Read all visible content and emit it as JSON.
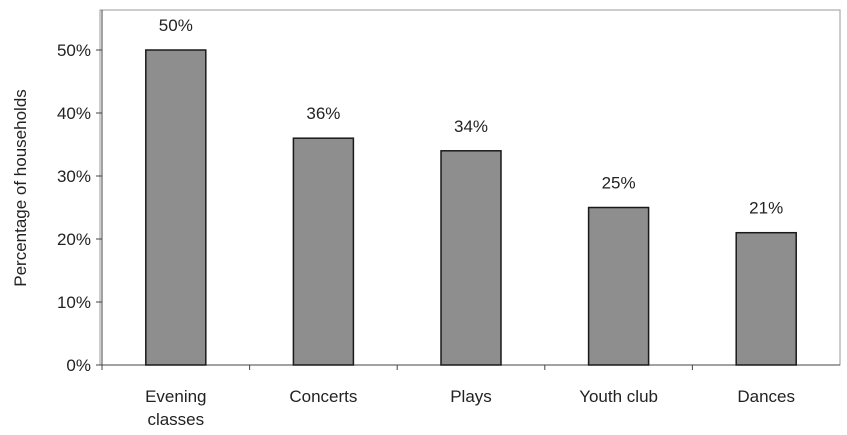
{
  "chart_data": {
    "type": "bar",
    "ylabel": "Percentage of households",
    "xlabel": "",
    "title": "",
    "categories": [
      [
        "Evening",
        "classes"
      ],
      [
        "Concerts"
      ],
      [
        "Plays"
      ],
      [
        "Youth club"
      ],
      [
        "Dances"
      ]
    ],
    "values": [
      50,
      36,
      34,
      25,
      21
    ],
    "data_labels": [
      "50%",
      "36%",
      "34%",
      "25%",
      "21%"
    ],
    "ylim": [
      0,
      55
    ],
    "yticks": [
      0,
      10,
      20,
      30,
      40,
      50
    ],
    "ytick_labels": [
      "0%",
      "10%",
      "20%",
      "30%",
      "40%",
      "50%"
    ],
    "grid": false,
    "legend": "none",
    "colors": {
      "bar": "#8e8e8e",
      "bar_edge": "#1a1a1a",
      "frame": "#9a9a9a"
    }
  }
}
